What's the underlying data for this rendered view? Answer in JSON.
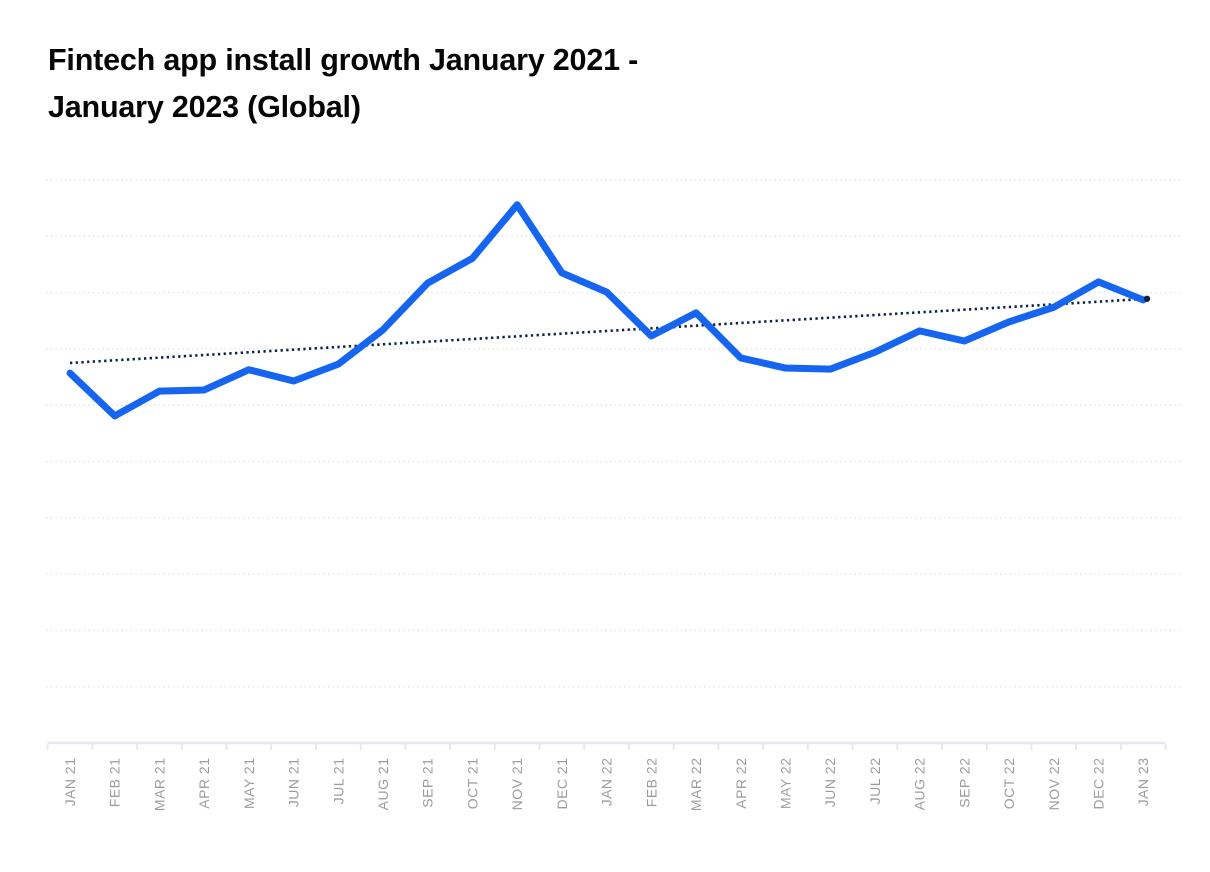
{
  "page": {
    "background_color": "#ffffff"
  },
  "chart": {
    "title_lines": [
      "Fintech app install growth January 2021 -",
      "January 2023 (Global)"
    ],
    "title_color": "#060606"
  },
  "chart_data": {
    "type": "line",
    "title": "Fintech app install growth January 2021 - January 2023 (Global)",
    "xlabel": "",
    "ylabel": "",
    "ylim": [
      0,
      100
    ],
    "y_tick_labels_visible": false,
    "y_values_note": "No y-axis scale shown in chart; values are a relative install-growth index (0-100) estimated from plotted positions",
    "grid": "horizontal-dotted",
    "legend_visible": false,
    "gridline_color": "#e5e5e8",
    "axis_line_color": "#e4e6f0",
    "axis_label_color": "#9c9ca3",
    "categories": [
      "JAN 21",
      "FEB 21",
      "MAR 21",
      "APR 21",
      "MAY 21",
      "JUN 21",
      "JUL 21",
      "AUG 21",
      "SEP 21",
      "OCT 21",
      "NOV 21",
      "DEC 21",
      "JAN 22",
      "FEB 22",
      "MAR 22",
      "APR 22",
      "MAY 22",
      "JUN 22",
      "JUL 22",
      "AUG 22",
      "SEP 22",
      "OCT 22",
      "NOV 22",
      "DEC 22",
      "JAN 23"
    ],
    "series": [
      {
        "name": "Fintech app install growth",
        "color": "#1565f0",
        "stroke_width": 7,
        "values": [
          65.7,
          58.1,
          62.5,
          62.7,
          66.3,
          64.3,
          67.3,
          73.4,
          81.7,
          86.1,
          95.6,
          83.5,
          80.1,
          72.3,
          76.4,
          68.4,
          66.6,
          66.4,
          69.4,
          73.2,
          71.4,
          74.8,
          77.4,
          81.9,
          78.7
        ]
      }
    ],
    "trendline": {
      "name": "Linear trend",
      "style": "dotted",
      "color": "#0e2247",
      "from": 67.5,
      "to": 78.9
    }
  }
}
